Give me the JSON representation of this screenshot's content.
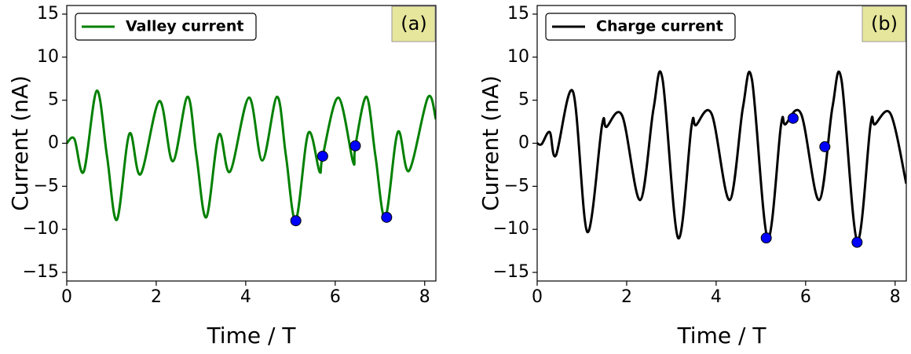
{
  "chart_data": [
    {
      "type": "line",
      "panel_label": "(a)",
      "xlabel": "Time / T",
      "ylabel": "Current (nA)",
      "legend": "upper left",
      "grid": false,
      "xlim": [
        0,
        8.25
      ],
      "ylim": [
        -16,
        16
      ],
      "xticks": [
        0,
        2,
        4,
        6,
        8
      ],
      "yticks": [
        {
          "value": -15,
          "label": "−15"
        },
        {
          "value": -10,
          "label": "−10"
        },
        {
          "value": -5,
          "label": "−5"
        },
        0,
        5,
        10,
        15
      ],
      "x": [
        0,
        0.17,
        0.38,
        0.67,
        0.9,
        1.12,
        1.4,
        1.65,
        2.07,
        2.37,
        2.7,
        2.9,
        3.12,
        3.4,
        3.65,
        4.07,
        4.37,
        4.7,
        4.9,
        5.12,
        5.4,
        5.65,
        5.72,
        6.07,
        6.4,
        6.45,
        6.7,
        6.9,
        7.12,
        7.4,
        7.65,
        8.07,
        8.25
      ],
      "series": [
        {
          "name": "Valley current",
          "color": "#008000",
          "values": [
            0,
            0.5,
            -3.3,
            6.1,
            -1.5,
            -8.9,
            1.1,
            -3.6,
            4.9,
            -2.1,
            5.4,
            -1.5,
            -8.6,
            1.0,
            -3.3,
            5.3,
            -2.0,
            5.4,
            -1.5,
            -8.9,
            1.2,
            -3.3,
            -1.5,
            5.3,
            -2.2,
            -0.3,
            5.4,
            -1.5,
            -8.6,
            1.3,
            -3.2,
            5.3,
            2.8
          ]
        }
      ],
      "markers": {
        "color": "#0000ff",
        "x": [
          5.12,
          5.72,
          6.45,
          7.15
        ],
        "values": [
          -9.0,
          -1.5,
          -0.3,
          -8.6
        ]
      }
    },
    {
      "type": "line",
      "panel_label": "(b)",
      "xlabel": "Time / T",
      "ylabel": "Current (nA)",
      "legend": "upper left",
      "grid": false,
      "xlim": [
        0,
        8.25
      ],
      "ylim": [
        -16,
        16
      ],
      "xticks": [
        0,
        2,
        4,
        6,
        8
      ],
      "yticks": [
        {
          "value": -15,
          "label": "−15"
        },
        {
          "value": -10,
          "label": "−10"
        },
        {
          "value": -5,
          "label": "−5"
        },
        0,
        5,
        10,
        15
      ],
      "x": [
        0,
        0.1,
        0.28,
        0.42,
        0.8,
        1.12,
        1.45,
        1.55,
        1.9,
        2.3,
        2.6,
        2.8,
        3.15,
        3.45,
        3.55,
        3.9,
        4.3,
        4.6,
        4.8,
        5.15,
        5.45,
        5.55,
        5.9,
        6.3,
        6.6,
        6.8,
        7.15,
        7.45,
        7.55,
        7.9,
        8.25
      ],
      "series": [
        {
          "name": "Charge current",
          "color": "#000000",
          "values": [
            0,
            -0.1,
            1.3,
            -1.4,
            6.0,
            -10.3,
            2.1,
            1.9,
            3.2,
            -6.6,
            4.0,
            7.5,
            -11.0,
            2.0,
            2.1,
            3.4,
            -6.6,
            4.2,
            7.4,
            -11.0,
            2.1,
            2.2,
            3.4,
            -6.6,
            4.2,
            7.4,
            -11.3,
            2.1,
            2.2,
            3.4,
            -4.7
          ]
        }
      ],
      "markers": {
        "color": "#0000ff",
        "x": [
          5.12,
          5.72,
          6.43,
          7.15
        ],
        "values": [
          -11.0,
          2.9,
          -0.4,
          -11.5
        ]
      }
    }
  ]
}
